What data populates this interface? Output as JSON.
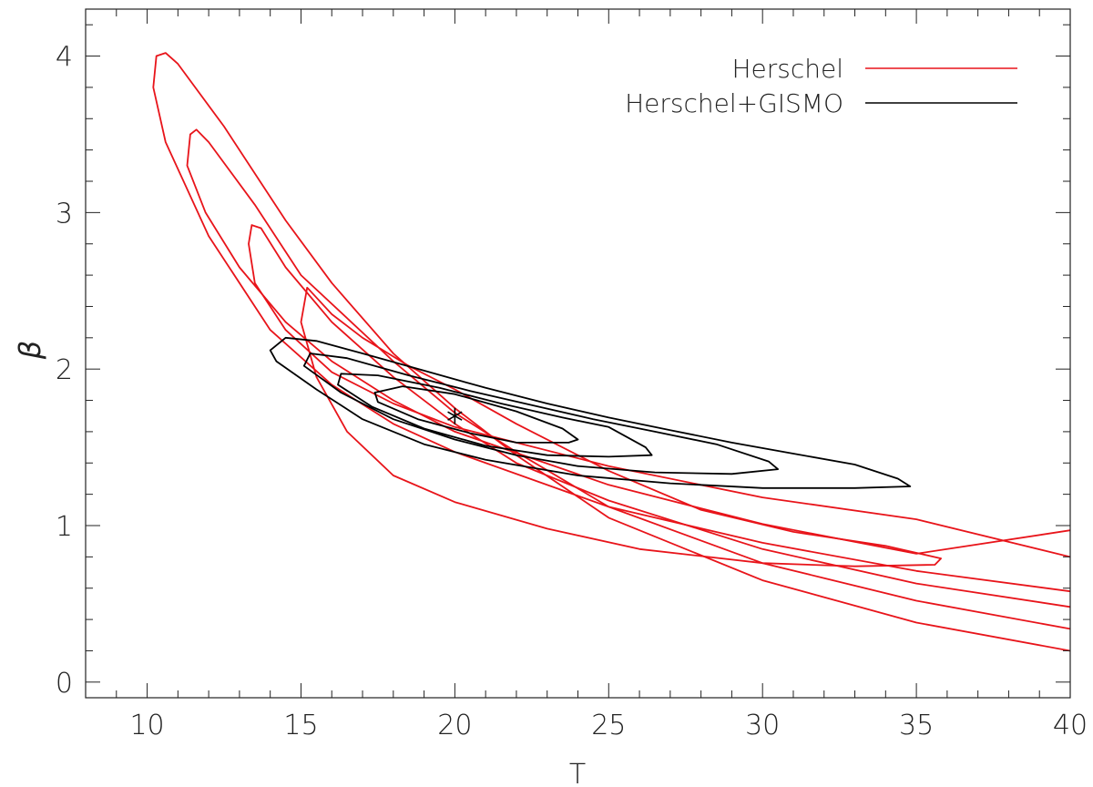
{
  "chart_data": {
    "type": "line",
    "title": "",
    "xlabel": "T",
    "ylabel": "β",
    "xlim": [
      8,
      40
    ],
    "ylim": [
      -0.1,
      4.3
    ],
    "xticks": [
      10,
      15,
      20,
      25,
      30,
      35,
      40
    ],
    "xtick_labels": [
      "10",
      "15",
      "20",
      "25",
      "30",
      "35",
      "40"
    ],
    "yticks": [
      0,
      1,
      2,
      3,
      4
    ],
    "ytick_labels": [
      "0",
      "1",
      "2",
      "3",
      "4"
    ],
    "x_minor_step": 1,
    "y_minor_step": 0.2,
    "grid": false,
    "legend_position": "top-right",
    "legend": [
      {
        "label": "Herschel",
        "color": "#e8141a"
      },
      {
        "label": "Herschel+GISMO",
        "color": "#000000"
      }
    ],
    "series": [
      {
        "name": "Herschel",
        "color": "#e8141a",
        "contours": [
          {
            "closed": false,
            "points": [
              [
                40,
                0.2
              ],
              [
                35,
                0.38
              ],
              [
                30,
                0.65
              ],
              [
                25,
                1.05
              ],
              [
                22,
                1.45
              ],
              [
                20,
                1.75
              ],
              [
                18,
                2.1
              ],
              [
                16,
                2.55
              ],
              [
                14.5,
                2.95
              ],
              [
                12.5,
                3.55
              ],
              [
                11,
                3.95
              ],
              [
                10.6,
                4.02
              ],
              [
                10.3,
                4.0
              ],
              [
                10.2,
                3.8
              ],
              [
                10.6,
                3.45
              ],
              [
                12,
                2.85
              ],
              [
                14,
                2.25
              ],
              [
                16,
                1.9
              ],
              [
                18,
                1.65
              ],
              [
                20,
                1.47
              ],
              [
                25,
                1.12
              ],
              [
                30,
                0.89
              ],
              [
                35,
                0.71
              ],
              [
                40,
                0.58
              ],
              [
                40,
                0.58
              ]
            ]
          },
          {
            "closed": false,
            "points": [
              [
                40,
                0.34
              ],
              [
                35,
                0.52
              ],
              [
                30,
                0.76
              ],
              [
                25,
                1.12
              ],
              [
                22,
                1.47
              ],
              [
                20,
                1.72
              ],
              [
                18,
                2.05
              ],
              [
                15,
                2.6
              ],
              [
                13.5,
                3.05
              ],
              [
                12,
                3.45
              ],
              [
                11.6,
                3.53
              ],
              [
                11.4,
                3.5
              ],
              [
                11.3,
                3.3
              ],
              [
                11.9,
                3.0
              ],
              [
                13,
                2.65
              ],
              [
                14.5,
                2.3
              ],
              [
                16,
                2.05
              ],
              [
                18,
                1.8
              ],
              [
                20,
                1.6
              ],
              [
                25,
                1.26
              ],
              [
                30,
                1.01
              ],
              [
                35,
                0.82
              ],
              [
                40,
                0.97
              ]
            ]
          },
          {
            "closed": false,
            "points": [
              [
                40,
                0.48
              ],
              [
                35,
                0.63
              ],
              [
                30,
                0.85
              ],
              [
                25,
                1.16
              ],
              [
                22,
                1.4
              ],
              [
                20,
                1.65
              ],
              [
                18,
                1.95
              ],
              [
                16,
                2.3
              ],
              [
                14.5,
                2.65
              ],
              [
                13.7,
                2.9
              ],
              [
                13.4,
                2.92
              ],
              [
                13.3,
                2.8
              ],
              [
                13.5,
                2.55
              ],
              [
                14.5,
                2.25
              ],
              [
                16,
                1.98
              ],
              [
                18,
                1.78
              ],
              [
                20,
                1.63
              ],
              [
                25,
                1.38
              ],
              [
                30,
                1.18
              ],
              [
                35,
                1.04
              ],
              [
                40,
                0.8
              ]
            ]
          },
          {
            "closed": true,
            "points": [
              [
                15.2,
                2.52
              ],
              [
                15.3,
                2.5
              ],
              [
                16,
                2.35
              ],
              [
                17,
                2.2
              ],
              [
                18.5,
                2.02
              ],
              [
                20,
                1.87
              ],
              [
                22,
                1.65
              ],
              [
                25,
                1.35
              ],
              [
                28,
                1.1
              ],
              [
                31,
                0.96
              ],
              [
                34,
                0.87
              ],
              [
                35.8,
                0.79
              ],
              [
                35.6,
                0.75
              ],
              [
                33,
                0.74
              ],
              [
                30,
                0.76
              ],
              [
                26,
                0.85
              ],
              [
                23,
                0.98
              ],
              [
                20,
                1.15
              ],
              [
                18,
                1.32
              ],
              [
                16.5,
                1.6
              ],
              [
                15.5,
                1.95
              ],
              [
                15.0,
                2.3
              ],
              [
                15.2,
                2.52
              ]
            ]
          }
        ]
      },
      {
        "name": "Herschel+GISMO",
        "color": "#000000",
        "contours": [
          {
            "closed": true,
            "points": [
              [
                14.5,
                2.2
              ],
              [
                15.5,
                2.18
              ],
              [
                17,
                2.1
              ],
              [
                19,
                1.99
              ],
              [
                21,
                1.88
              ],
              [
                23,
                1.78
              ],
              [
                25,
                1.69
              ],
              [
                27,
                1.61
              ],
              [
                29,
                1.53
              ],
              [
                31,
                1.46
              ],
              [
                33,
                1.39
              ],
              [
                34.4,
                1.3
              ],
              [
                34.8,
                1.25
              ],
              [
                33,
                1.24
              ],
              [
                30,
                1.24
              ],
              [
                27,
                1.27
              ],
              [
                24,
                1.32
              ],
              [
                21,
                1.42
              ],
              [
                19,
                1.52
              ],
              [
                17,
                1.68
              ],
              [
                15.5,
                1.87
              ],
              [
                14.2,
                2.05
              ],
              [
                14.0,
                2.12
              ],
              [
                14.5,
                2.2
              ]
            ]
          },
          {
            "closed": true,
            "points": [
              [
                15.3,
                2.1
              ],
              [
                16.5,
                2.07
              ],
              [
                18.5,
                1.96
              ],
              [
                20.5,
                1.86
              ],
              [
                22.5,
                1.77
              ],
              [
                24.5,
                1.68
              ],
              [
                26.5,
                1.6
              ],
              [
                28.5,
                1.52
              ],
              [
                30.2,
                1.41
              ],
              [
                30.5,
                1.36
              ],
              [
                29,
                1.33
              ],
              [
                26.5,
                1.34
              ],
              [
                24,
                1.38
              ],
              [
                22,
                1.45
              ],
              [
                20,
                1.55
              ],
              [
                18,
                1.68
              ],
              [
                16.3,
                1.85
              ],
              [
                15.1,
                2.02
              ],
              [
                15.3,
                2.1
              ]
            ]
          },
          {
            "closed": true,
            "points": [
              [
                16.3,
                1.97
              ],
              [
                17.5,
                1.96
              ],
              [
                19.5,
                1.88
              ],
              [
                21.5,
                1.78
              ],
              [
                23.5,
                1.69
              ],
              [
                25,
                1.63
              ],
              [
                26.2,
                1.5
              ],
              [
                26.4,
                1.45
              ],
              [
                25,
                1.44
              ],
              [
                23,
                1.45
              ],
              [
                21,
                1.51
              ],
              [
                19,
                1.62
              ],
              [
                17.3,
                1.76
              ],
              [
                16.2,
                1.9
              ],
              [
                16.3,
                1.97
              ]
            ]
          },
          {
            "closed": true,
            "points": [
              [
                17.4,
                1.85
              ],
              [
                18.3,
                1.89
              ],
              [
                20,
                1.84
              ],
              [
                22,
                1.73
              ],
              [
                23.5,
                1.62
              ],
              [
                24.0,
                1.55
              ],
              [
                23.7,
                1.53
              ],
              [
                22,
                1.53
              ],
              [
                20.5,
                1.59
              ],
              [
                18.8,
                1.68
              ],
              [
                17.5,
                1.79
              ],
              [
                17.4,
                1.85
              ]
            ]
          }
        ]
      }
    ],
    "marker": {
      "x": 20.0,
      "y": 1.7,
      "symbol": "asterisk",
      "color": "#000000"
    }
  }
}
